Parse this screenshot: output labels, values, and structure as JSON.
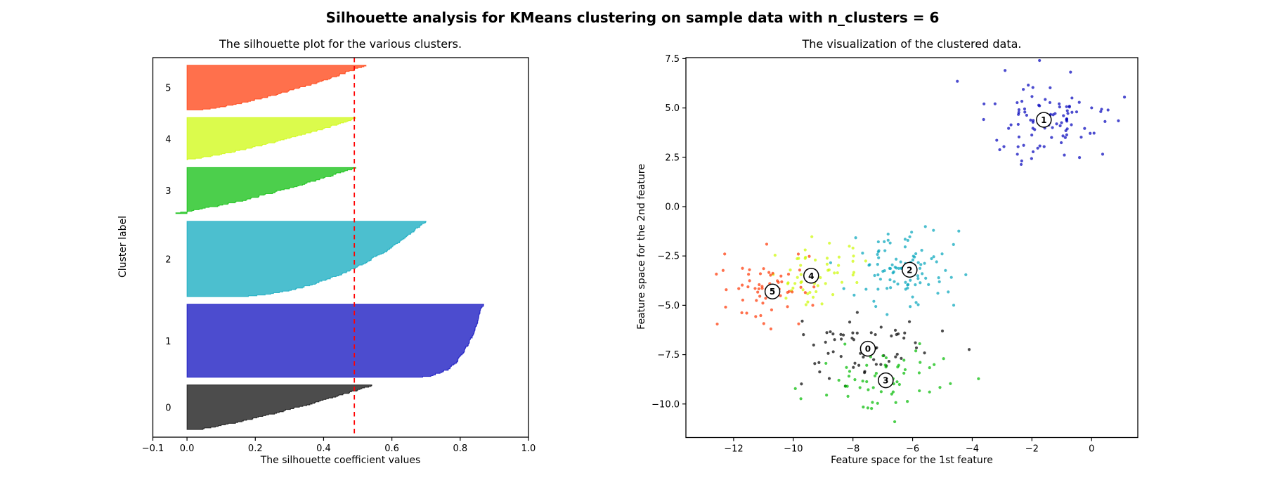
{
  "figure": {
    "suptitle": "Silhouette analysis for KMeans clustering on sample data with n_clusters = 6",
    "background": "#ffffff",
    "n_clusters_shown": "6"
  },
  "chart_data": [
    {
      "type": "area",
      "role": "silhouette-plot",
      "title": "The silhouette plot for the various clusters.",
      "xlabel": "The silhouette coefficient values",
      "ylabel": "Cluster label",
      "xlim": [
        -0.1,
        1.0
      ],
      "xticks": [
        -0.1,
        0.0,
        0.2,
        0.4,
        0.6,
        0.8,
        1.0
      ],
      "xtick_labels": [
        "−0.1",
        "0.0",
        "0.2",
        "0.4",
        "0.6",
        "0.8",
        "1.0"
      ],
      "yticks": [],
      "gap_units": 10,
      "avg_silhouette": 0.49,
      "avg_line_color": "#ff0000",
      "fill_alpha": 0.7,
      "grid": false,
      "clusters": [
        {
          "label": "0",
          "color": "#000000",
          "n": 58,
          "sil_min": 0.02,
          "sil_max": 0.545,
          "profile_power": 0.8
        },
        {
          "label": "1",
          "color": "#0000BB",
          "n": 95,
          "sil_min": 0.55,
          "sil_max": 0.865,
          "profile_power": 0.18
        },
        {
          "label": "2",
          "color": "#00A4BB",
          "n": 98,
          "sil_min": 0.1,
          "sil_max": 0.7,
          "profile_power": 0.45
        },
        {
          "label": "3",
          "color": "#00BB00",
          "n": 60,
          "sil_min": -0.07,
          "sil_max": 0.49,
          "profile_power": 0.72
        },
        {
          "label": "4",
          "color": "#CCF900",
          "n": 55,
          "sil_min": -0.02,
          "sil_max": 0.5,
          "profile_power": 0.75
        },
        {
          "label": "5",
          "color": "#FF3300",
          "n": 58,
          "sil_min": 0.02,
          "sil_max": 0.52,
          "profile_power": 0.7
        }
      ]
    },
    {
      "type": "scatter",
      "role": "clustered-data-plot",
      "title": "The visualization of the clustered data.",
      "xlabel": "Feature space for the 1st feature",
      "ylabel": "Feature space for the 2nd feature",
      "xlim": [
        -13.6,
        1.55
      ],
      "ylim": [
        -11.7,
        7.55
      ],
      "xticks": [
        -12,
        -10,
        -8,
        -6,
        -4,
        -2,
        0
      ],
      "xtick_labels": [
        "−12",
        "−10",
        "−8",
        "−6",
        "−4",
        "−2",
        "0"
      ],
      "yticks": [
        7.5,
        5.0,
        2.5,
        0.0,
        -2.5,
        -5.0,
        -7.5,
        -10.0
      ],
      "ytick_labels": [
        "7.5",
        "5.0",
        "2.5",
        "0.0",
        "−2.5",
        "−5.0",
        "−7.5",
        "−10.0"
      ],
      "point_alpha": 0.7,
      "grid": false,
      "center_marker": {
        "fill": "#ffffff",
        "edge": "#000000"
      },
      "clusters": [
        {
          "label": "0",
          "color": "#000000",
          "n": 58,
          "center": [
            -7.5,
            -7.2
          ],
          "std": [
            1.05,
            0.8
          ],
          "seed": 101,
          "extras": [
            [
              -9.7,
              -5.8
            ],
            [
              -5.0,
              -6.3
            ]
          ]
        },
        {
          "label": "1",
          "color": "#0000BB",
          "n": 95,
          "center": [
            -1.6,
            4.4
          ],
          "std": [
            1.0,
            1.0
          ],
          "seed": 202,
          "extras": [
            [
              -4.5,
              6.35
            ],
            [
              0.9,
              4.35
            ],
            [
              -2.9,
              6.9
            ]
          ]
        },
        {
          "label": "2",
          "color": "#00A4BB",
          "n": 98,
          "center": [
            -6.1,
            -3.2
          ],
          "std": [
            0.8,
            0.95
          ],
          "seed": 303,
          "extras": [
            [
              -5.3,
              -1.2
            ]
          ]
        },
        {
          "label": "3",
          "color": "#00BB00",
          "n": 60,
          "center": [
            -6.9,
            -8.8
          ],
          "std": [
            1.0,
            0.8
          ],
          "seed": 404,
          "extras": [
            [
              -3.79,
              -8.72
            ],
            [
              -6.6,
              -10.9
            ],
            [
              -7.5,
              -10.2
            ]
          ]
        },
        {
          "label": "4",
          "color": "#CCF900",
          "n": 55,
          "center": [
            -9.4,
            -3.5
          ],
          "std": [
            0.8,
            0.8
          ],
          "seed": 505,
          "extras": [
            [
              -8.0,
              -2.1
            ]
          ]
        },
        {
          "label": "5",
          "color": "#FF3300",
          "n": 58,
          "center": [
            -10.7,
            -4.3
          ],
          "std": [
            0.9,
            0.95
          ],
          "seed": 606,
          "extras": [
            [
              -12.55,
              -5.95
            ],
            [
              -12.3,
              -2.4
            ]
          ]
        }
      ]
    }
  ]
}
